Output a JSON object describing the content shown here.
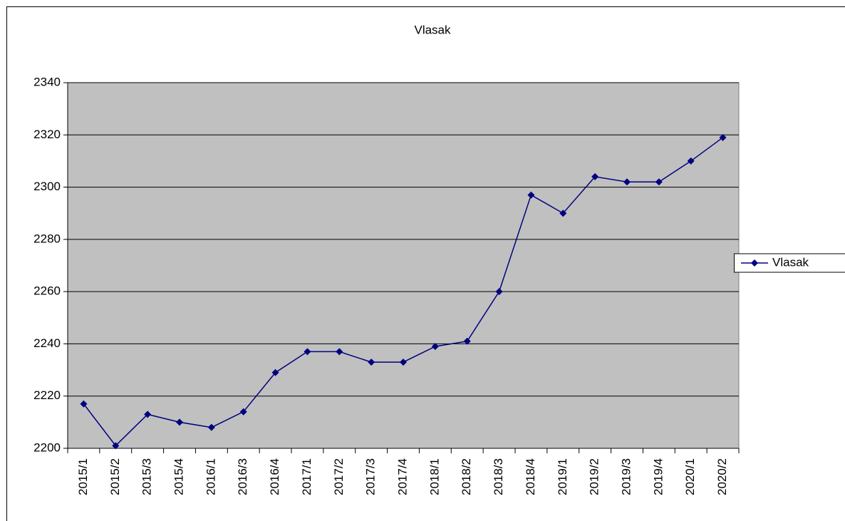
{
  "chart_data": {
    "type": "line",
    "title": "Vlasak",
    "categories": [
      "2015/1",
      "2015/2",
      "2015/3",
      "2015/4",
      "2016/1",
      "2016/3",
      "2016/4",
      "2017/1",
      "2017/2",
      "2017/3",
      "2017/4",
      "2018/1",
      "2018/2",
      "2018/3",
      "2018/4",
      "2019/1",
      "2019/2",
      "2019/3",
      "2019/4",
      "2020/1",
      "2020/2"
    ],
    "series": [
      {
        "name": "Vlasak",
        "color": "#000080",
        "values": [
          2217,
          2201,
          2213,
          2210,
          2208,
          2214,
          2229,
          2237,
          2237,
          2233,
          2233,
          2239,
          2241,
          2260,
          2297,
          2290,
          2304,
          2302,
          2302,
          2310,
          2319
        ]
      }
    ],
    "ylim": [
      2200,
      2340
    ],
    "yticks": [
      2200,
      2220,
      2240,
      2260,
      2280,
      2300,
      2320,
      2340
    ],
    "grid": true,
    "legend": "right"
  }
}
